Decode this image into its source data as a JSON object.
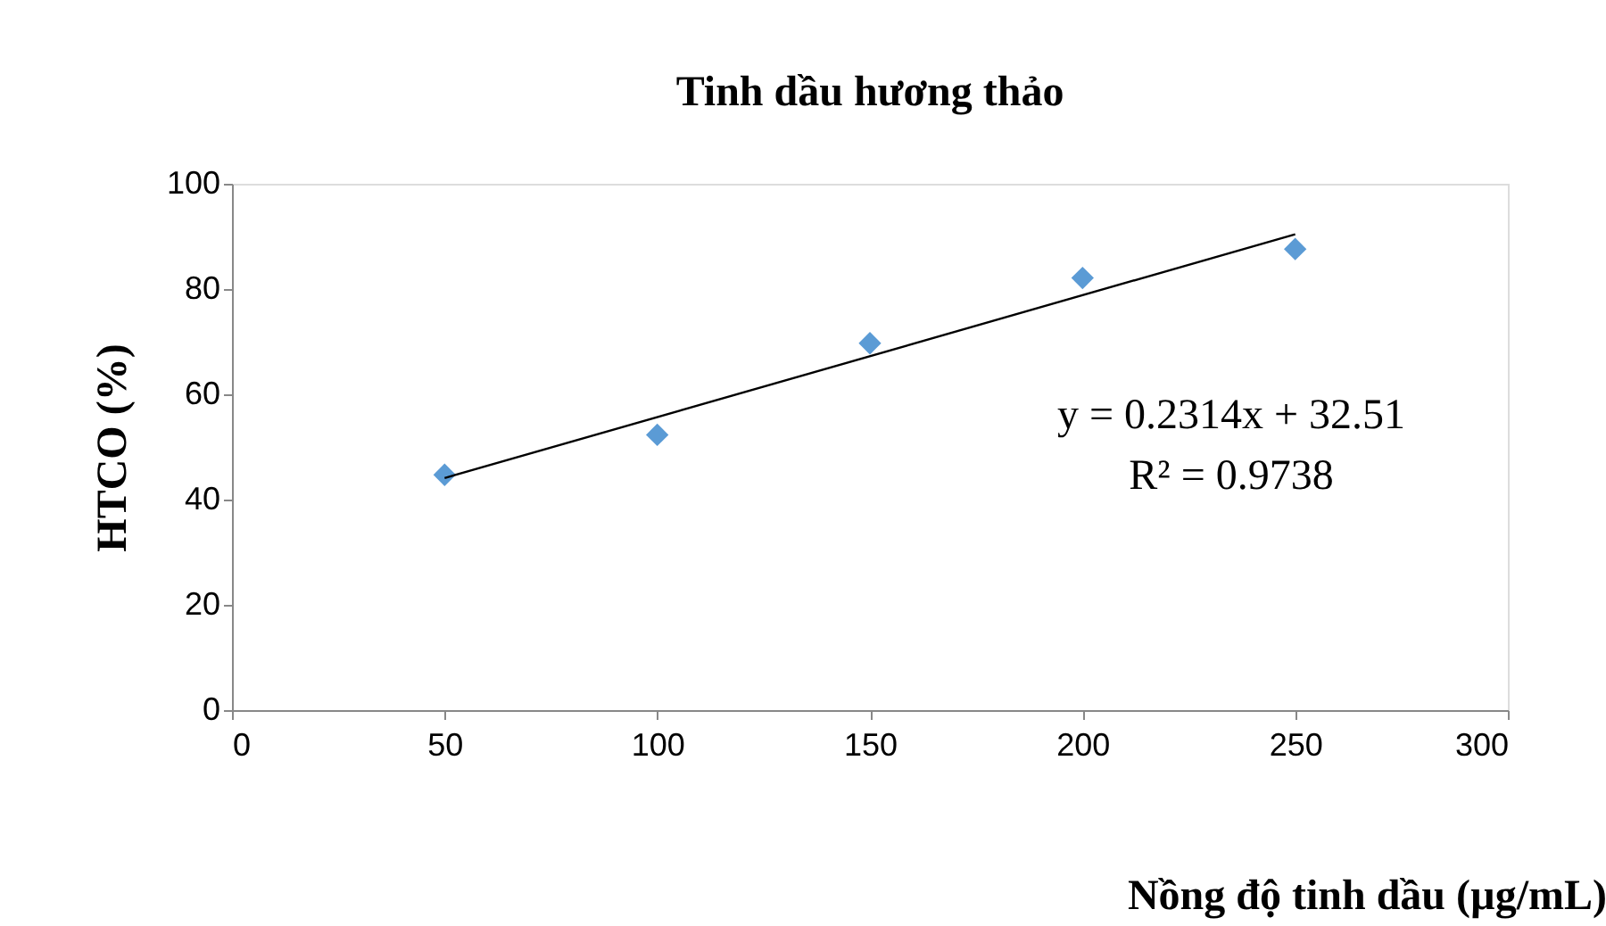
{
  "chart_data": {
    "type": "scatter",
    "title": "Tinh dầu hương thảo",
    "xlabel": "Nồng độ tinh dầu (µg/mL)",
    "ylabel": "HTCO (%)",
    "xlim": [
      0,
      300
    ],
    "xticks": [
      0,
      50,
      100,
      150,
      200,
      250,
      300
    ],
    "ylim": [
      0,
      100
    ],
    "yticks": [
      0,
      20,
      40,
      60,
      80,
      100
    ],
    "grid": false,
    "series": [
      {
        "color": "#5b9bd5",
        "marker": "diamond",
        "x": [
          50,
          100,
          150,
          200,
          250
        ],
        "values": [
          44.7,
          52.3,
          69.7,
          82.1,
          87.6
        ]
      },
      {
        "type": "line",
        "color": "#000000",
        "marker": "none",
        "line_style": "solid",
        "x": [
          50,
          250
        ],
        "values": [
          44.1,
          90.4
        ]
      }
    ],
    "annotations": [
      "y = 0.2314x + 32.51",
      "R² = 0.9738"
    ]
  }
}
